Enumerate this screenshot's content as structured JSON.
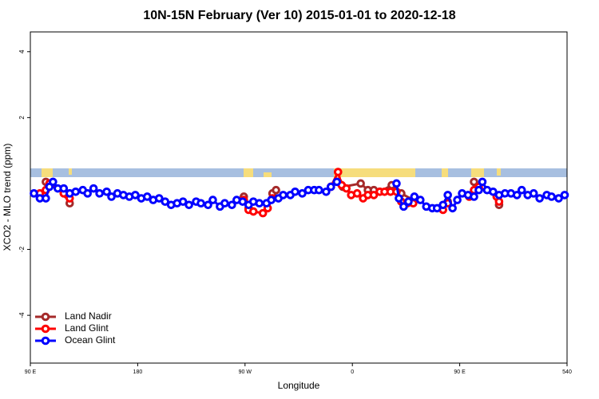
{
  "chart_data": {
    "type": "line",
    "title": "10N-15N February (Ver 10)   2015-01-01 to 2020-12-18",
    "x_label": "Longitude",
    "y_label": "XCO2 - MLO trend (ppm)",
    "xlim": [
      90,
      540
    ],
    "xticks": [
      {
        "value": 90,
        "label": "90 E"
      },
      180,
      {
        "value": 270,
        "label": "90 W"
      },
      {
        "value": 360,
        "label": "0"
      },
      {
        "value": 450,
        "label": "90 E"
      },
      540
    ],
    "ylim": [
      -5.45,
      4.6
    ],
    "yticks": [
      -4,
      -2,
      2,
      4
    ],
    "legend": "bottom-left",
    "series": [
      {
        "name": "Land Nadir",
        "color": "#a52a2a",
        "x": [
          103,
          106,
          110,
          121,
          123,
          200,
          269,
          273,
          280,
          293,
          296,
          320,
          348,
          352,
          367,
          373,
          378,
          383,
          393,
          401,
          411,
          430,
          440,
          450,
          462,
          470,
          483
        ],
        "values": [
          0.05,
          -0.05,
          null,
          -0.35,
          -0.6,
          null,
          -0.4,
          -0.75,
          null,
          -0.3,
          -0.2,
          null,
          0.05,
          -0.1,
          0.0,
          -0.2,
          -0.2,
          -0.25,
          -0.05,
          -0.3,
          -0.5,
          null,
          -0.55,
          null,
          0.05,
          null,
          -0.65
        ]
      },
      {
        "name": "Land Glint",
        "color": "#ff0000",
        "x": [
          98,
          103,
          106,
          118,
          123,
          200,
          269,
          273,
          277,
          285,
          289,
          293,
          320,
          342,
          348,
          351,
          355,
          359,
          364,
          369,
          373,
          378,
          383,
          387,
          392,
          397,
          401,
          406,
          411,
          420,
          436,
          440,
          445,
          458,
          462,
          466,
          481,
          483
        ],
        "values": [
          -0.3,
          -0.2,
          0.0,
          -0.3,
          -0.45,
          null,
          -0.5,
          -0.8,
          -0.85,
          -0.9,
          -0.75,
          -0.45,
          null,
          -0.1,
          0.35,
          -0.05,
          -0.15,
          -0.35,
          -0.3,
          -0.45,
          -0.35,
          -0.35,
          -0.25,
          -0.25,
          -0.25,
          -0.25,
          -0.55,
          -0.6,
          -0.6,
          null,
          -0.8,
          -0.6,
          null,
          -0.4,
          -0.2,
          -0.1,
          -0.4,
          -0.55
        ]
      },
      {
        "name": "Ocean Glint",
        "color": "#0000ff",
        "x": [
          93,
          98,
          103,
          106,
          109,
          113,
          118,
          123,
          128,
          134,
          138,
          143,
          148,
          154,
          158,
          163,
          168,
          173,
          178,
          183,
          188,
          193,
          198,
          203,
          208,
          213,
          218,
          223,
          229,
          233,
          239,
          243,
          249,
          253,
          259,
          263,
          268,
          273,
          277,
          282,
          288,
          292,
          298,
          302,
          308,
          312,
          318,
          323,
          328,
          332,
          338,
          342,
          347,
          372,
          397,
          399,
          403,
          407,
          412,
          417,
          422,
          427,
          431,
          436,
          440,
          444,
          448,
          452,
          457,
          462,
          466,
          469,
          473,
          478,
          483,
          488,
          493,
          498,
          502,
          507,
          512,
          517,
          523,
          527,
          533,
          538
        ],
        "values": [
          -0.3,
          -0.45,
          -0.45,
          -0.1,
          0.05,
          -0.15,
          -0.15,
          -0.3,
          -0.25,
          -0.2,
          -0.3,
          -0.15,
          -0.3,
          -0.25,
          -0.4,
          -0.3,
          -0.35,
          -0.4,
          -0.35,
          -0.45,
          -0.4,
          -0.5,
          -0.45,
          -0.55,
          -0.65,
          -0.6,
          -0.55,
          -0.65,
          -0.55,
          -0.6,
          -0.65,
          -0.5,
          -0.7,
          -0.6,
          -0.65,
          -0.5,
          -0.55,
          -0.65,
          -0.55,
          -0.6,
          -0.6,
          -0.5,
          -0.45,
          -0.35,
          -0.35,
          -0.25,
          -0.3,
          -0.2,
          -0.2,
          -0.2,
          -0.25,
          -0.1,
          0.05,
          null,
          0.0,
          -0.45,
          -0.7,
          -0.55,
          -0.4,
          -0.5,
          -0.7,
          -0.75,
          -0.75,
          -0.65,
          -0.35,
          -0.75,
          -0.5,
          -0.3,
          -0.35,
          -0.4,
          -0.2,
          0.05,
          -0.2,
          -0.25,
          -0.35,
          -0.3,
          -0.3,
          -0.35,
          -0.2,
          -0.35,
          -0.3,
          -0.45,
          -0.35,
          -0.4,
          -0.45,
          -0.35
        ]
      }
    ]
  }
}
